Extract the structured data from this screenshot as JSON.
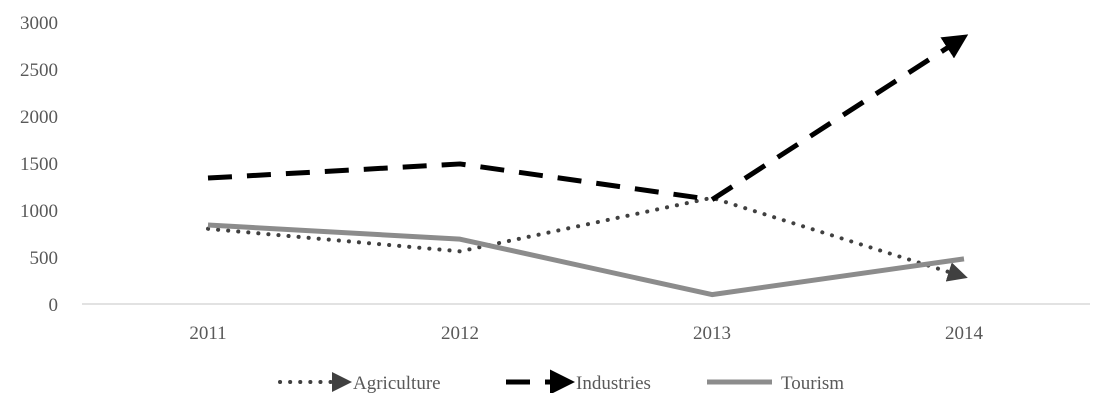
{
  "chart_data": {
    "type": "line",
    "title": "",
    "xlabel": "",
    "ylabel": "",
    "categories": [
      "2011",
      "2012",
      "2013",
      "2014"
    ],
    "ylim": [
      0,
      3000
    ],
    "yticks": [
      "0",
      "500",
      "1000",
      "1500",
      "2000",
      "2500",
      "3000"
    ],
    "grid": false,
    "legend_position": "bottom",
    "series": [
      {
        "name": "Agriculture",
        "values": [
          800,
          560,
          1130,
          290
        ],
        "style": "dotted",
        "color": "#404040",
        "marker_end": "arrow"
      },
      {
        "name": "Industries",
        "values": [
          1340,
          1490,
          1110,
          2840
        ],
        "style": "dashed",
        "color": "#000000",
        "marker_end": "arrow"
      },
      {
        "name": "Tourism",
        "values": [
          840,
          690,
          100,
          480
        ],
        "style": "solid",
        "color": "#8c8c8c",
        "marker_end": "none"
      }
    ]
  }
}
